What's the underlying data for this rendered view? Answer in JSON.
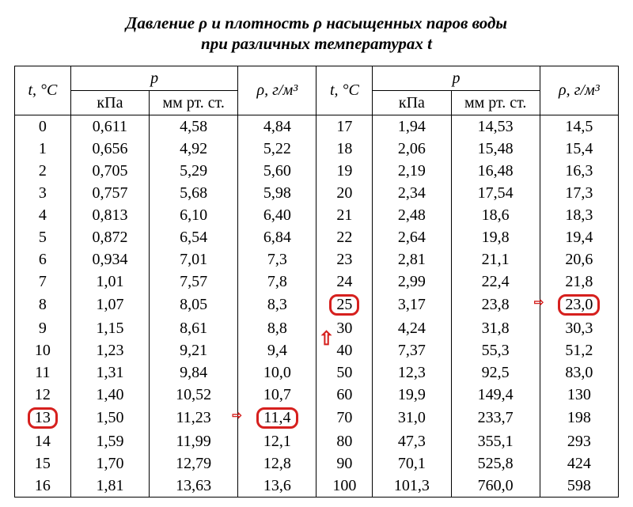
{
  "title_line1": "Давление ρ и плотность ρ насыщенных паров воды",
  "title_line2": "при различных температурах t",
  "headers": {
    "t": "t, °C",
    "p_group": "p",
    "p_kpa": "кПа",
    "p_mm": "мм рт. ст.",
    "rho": "ρ, г/м³"
  },
  "left_rows": [
    {
      "t": "0",
      "kpa": "0,611",
      "mm": "4,58",
      "rho": "4,84"
    },
    {
      "t": "1",
      "kpa": "0,656",
      "mm": "4,92",
      "rho": "5,22"
    },
    {
      "t": "2",
      "kpa": "0,705",
      "mm": "5,29",
      "rho": "5,60"
    },
    {
      "t": "3",
      "kpa": "0,757",
      "mm": "5,68",
      "rho": "5,98"
    },
    {
      "t": "4",
      "kpa": "0,813",
      "mm": "6,10",
      "rho": "6,40"
    },
    {
      "t": "5",
      "kpa": "0,872",
      "mm": "6,54",
      "rho": "6,84"
    },
    {
      "t": "6",
      "kpa": "0,934",
      "mm": "7,01",
      "rho": "7,3"
    },
    {
      "t": "7",
      "kpa": "1,01",
      "mm": "7,57",
      "rho": "7,8"
    },
    {
      "t": "8",
      "kpa": "1,07",
      "mm": "8,05",
      "rho": "8,3"
    },
    {
      "t": "9",
      "kpa": "1,15",
      "mm": "8,61",
      "rho": "8,8"
    },
    {
      "t": "10",
      "kpa": "1,23",
      "mm": "9,21",
      "rho": "9,4"
    },
    {
      "t": "11",
      "kpa": "1,31",
      "mm": "9,84",
      "rho": "10,0"
    },
    {
      "t": "12",
      "kpa": "1,40",
      "mm": "10,52",
      "rho": "10,7"
    },
    {
      "t": "13",
      "kpa": "1,50",
      "mm": "11,23",
      "rho": "11,4",
      "hl_t": true,
      "hl_rho": true,
      "arrow_rho": true
    },
    {
      "t": "14",
      "kpa": "1,59",
      "mm": "11,99",
      "rho": "12,1"
    },
    {
      "t": "15",
      "kpa": "1,70",
      "mm": "12,79",
      "rho": "12,8"
    },
    {
      "t": "16",
      "kpa": "1,81",
      "mm": "13,63",
      "rho": "13,6"
    }
  ],
  "right_rows": [
    {
      "t": "17",
      "kpa": "1,94",
      "mm": "14,53",
      "rho": "14,5"
    },
    {
      "t": "18",
      "kpa": "2,06",
      "mm": "15,48",
      "rho": "15,4"
    },
    {
      "t": "19",
      "kpa": "2,19",
      "mm": "16,48",
      "rho": "16,3"
    },
    {
      "t": "20",
      "kpa": "2,34",
      "mm": "17,54",
      "rho": "17,3"
    },
    {
      "t": "21",
      "kpa": "2,48",
      "mm": "18,6",
      "rho": "18,3"
    },
    {
      "t": "22",
      "kpa": "2,64",
      "mm": "19,8",
      "rho": "19,4"
    },
    {
      "t": "23",
      "kpa": "2,81",
      "mm": "21,1",
      "rho": "20,6"
    },
    {
      "t": "24",
      "kpa": "2,99",
      "mm": "22,4",
      "rho": "21,8"
    },
    {
      "t": "25",
      "kpa": "3,17",
      "mm": "23,8",
      "rho": "23,0",
      "hl_t": true,
      "hl_rho": true,
      "arrow_rho": true
    },
    {
      "t": "30",
      "kpa": "4,24",
      "mm": "31,8",
      "rho": "30,3"
    },
    {
      "t": "40",
      "kpa": "7,37",
      "mm": "55,3",
      "rho": "51,2",
      "up_arrow": true
    },
    {
      "t": "50",
      "kpa": "12,3",
      "mm": "92,5",
      "rho": "83,0"
    },
    {
      "t": "60",
      "kpa": "19,9",
      "mm": "149,4",
      "rho": "130"
    },
    {
      "t": "70",
      "kpa": "31,0",
      "mm": "233,7",
      "rho": "198"
    },
    {
      "t": "80",
      "kpa": "47,3",
      "mm": "355,1",
      "rho": "293"
    },
    {
      "t": "90",
      "kpa": "70,1",
      "mm": "525,8",
      "rho": "424"
    },
    {
      "t": "100",
      "kpa": "101,3",
      "mm": "760,0",
      "rho": "598"
    }
  ],
  "highlight_color": "#d6201e"
}
